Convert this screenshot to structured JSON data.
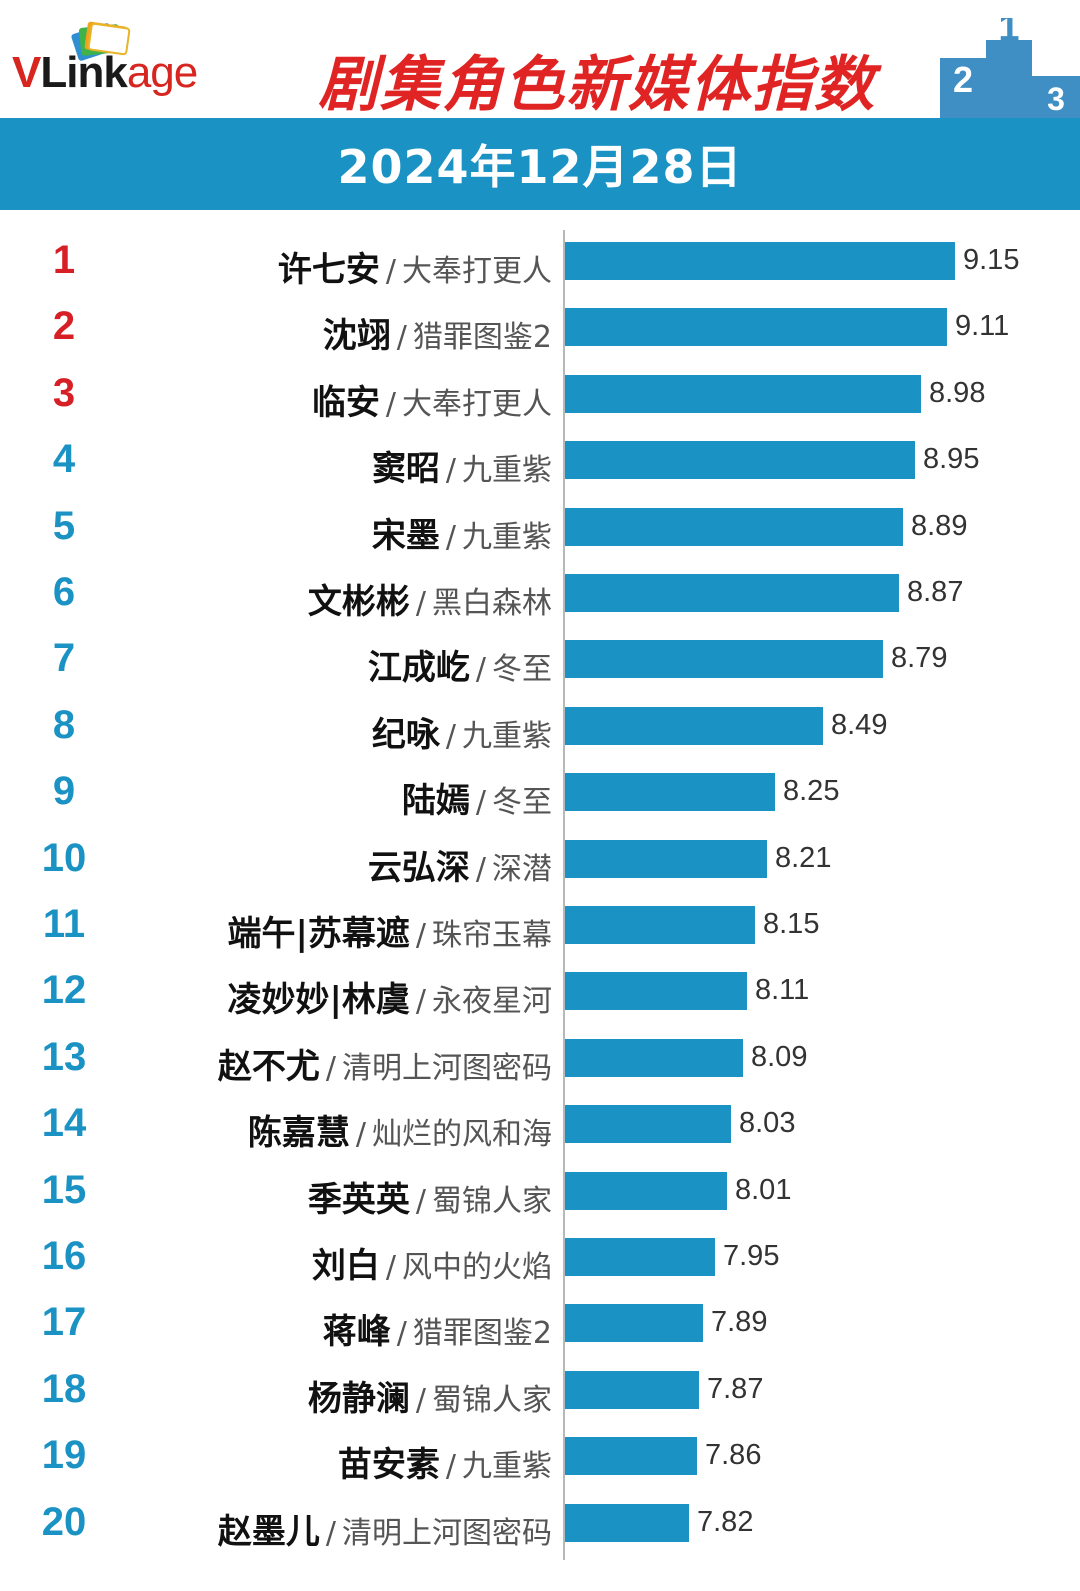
{
  "header": {
    "logo": "VLinkage",
    "title": "剧集角色新媒体指数",
    "date": "2024年12月28日"
  },
  "chart_data": {
    "type": "bar",
    "orientation": "horizontal",
    "title": "剧集角色新媒体指数",
    "subtitle": "2024年12月28日",
    "xlim": [
      7.2,
      9.4
    ],
    "color": "#1b92c4",
    "rank_colors": {
      "top3": "#d71f26",
      "others": "#1b92c4"
    },
    "rows": [
      {
        "rank": "1",
        "name": "许七安",
        "drama": "大奉打更人",
        "value": 9.15
      },
      {
        "rank": "2",
        "name": "沈翊",
        "drama": "猎罪图鉴2",
        "value": 9.11
      },
      {
        "rank": "3",
        "name": "临安",
        "drama": "大奉打更人",
        "value": 8.98
      },
      {
        "rank": "4",
        "name": "窦昭",
        "drama": "九重紫",
        "value": 8.95
      },
      {
        "rank": "5",
        "name": "宋墨",
        "drama": "九重紫",
        "value": 8.89
      },
      {
        "rank": "6",
        "name": "文彬彬",
        "drama": "黑白森林",
        "value": 8.87
      },
      {
        "rank": "7",
        "name": "江成屹",
        "drama": "冬至",
        "value": 8.79
      },
      {
        "rank": "8",
        "name": "纪咏",
        "drama": "九重紫",
        "value": 8.49
      },
      {
        "rank": "9",
        "name": "陆嫣",
        "drama": "冬至",
        "value": 8.25
      },
      {
        "rank": "10",
        "name": "云弘深",
        "drama": "深潜",
        "value": 8.21
      },
      {
        "rank": "11",
        "name": "端午|苏幕遮",
        "drama": "珠帘玉幕",
        "value": 8.15
      },
      {
        "rank": "12",
        "name": "凌妙妙|林虞",
        "drama": "永夜星河",
        "value": 8.11
      },
      {
        "rank": "13",
        "name": "赵不尤",
        "drama": "清明上河图密码",
        "value": 8.09
      },
      {
        "rank": "14",
        "name": "陈嘉慧",
        "drama": "灿烂的风和海",
        "value": 8.03
      },
      {
        "rank": "15",
        "name": "季英英",
        "drama": "蜀锦人家",
        "value": 8.01
      },
      {
        "rank": "16",
        "name": "刘白",
        "drama": "风中的火焰",
        "value": 7.95
      },
      {
        "rank": "17",
        "name": "蒋峰",
        "drama": "猎罪图鉴2",
        "value": 7.89
      },
      {
        "rank": "18",
        "name": "杨静澜",
        "drama": "蜀锦人家",
        "value": 7.87
      },
      {
        "rank": "19",
        "name": "苗安素",
        "drama": "九重紫",
        "value": 7.86
      },
      {
        "rank": "20",
        "name": "赵墨儿",
        "drama": "清明上河图密码",
        "value": 7.82
      }
    ]
  }
}
